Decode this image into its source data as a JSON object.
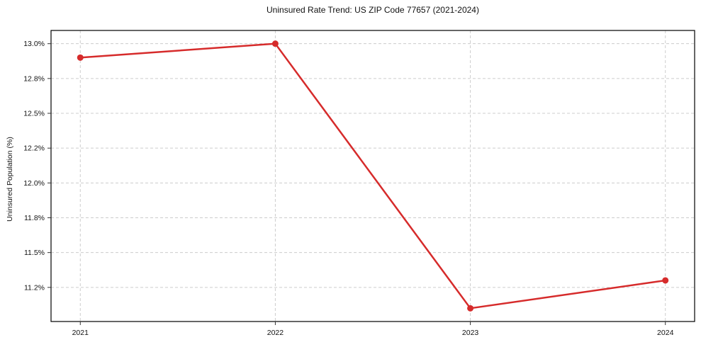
{
  "title": "Uninsured Rate Trend: US ZIP Code 77657 (2021-2024)",
  "chart_data": {
    "type": "line",
    "title": "Uninsured Rate Trend: US ZIP Code 77657 (2021-2024)",
    "xlabel": "",
    "ylabel": "Uninsured Population (%)",
    "x": [
      2021,
      2022,
      2023,
      2024
    ],
    "series": [
      {
        "name": "Uninsured Rate",
        "values": [
          12.9,
          13.0,
          11.1,
          11.3
        ]
      }
    ],
    "xticks": [
      2021,
      2022,
      2023,
      2024
    ],
    "xtick_labels": [
      "2021",
      "2022",
      "2023",
      "2024"
    ],
    "yticks": [
      11.25,
      11.5,
      11.75,
      12.0,
      12.25,
      12.5,
      12.75,
      13.0
    ],
    "ytick_labels": [
      "11.2%",
      "11.5%",
      "11.8%",
      "12.0%",
      "12.2%",
      "12.5%",
      "12.8%",
      "13.0%"
    ],
    "xlim": [
      2020.85,
      2024.15
    ],
    "ylim": [
      11.005,
      13.095
    ],
    "grid": true,
    "legend_position": "none",
    "colors": {
      "line": "#d62b2b",
      "marker": "#d62b2b",
      "grid": "#cccccc",
      "spine": "#000000",
      "tick": "#333333",
      "text": "#111111",
      "background": "#ffffff"
    }
  }
}
